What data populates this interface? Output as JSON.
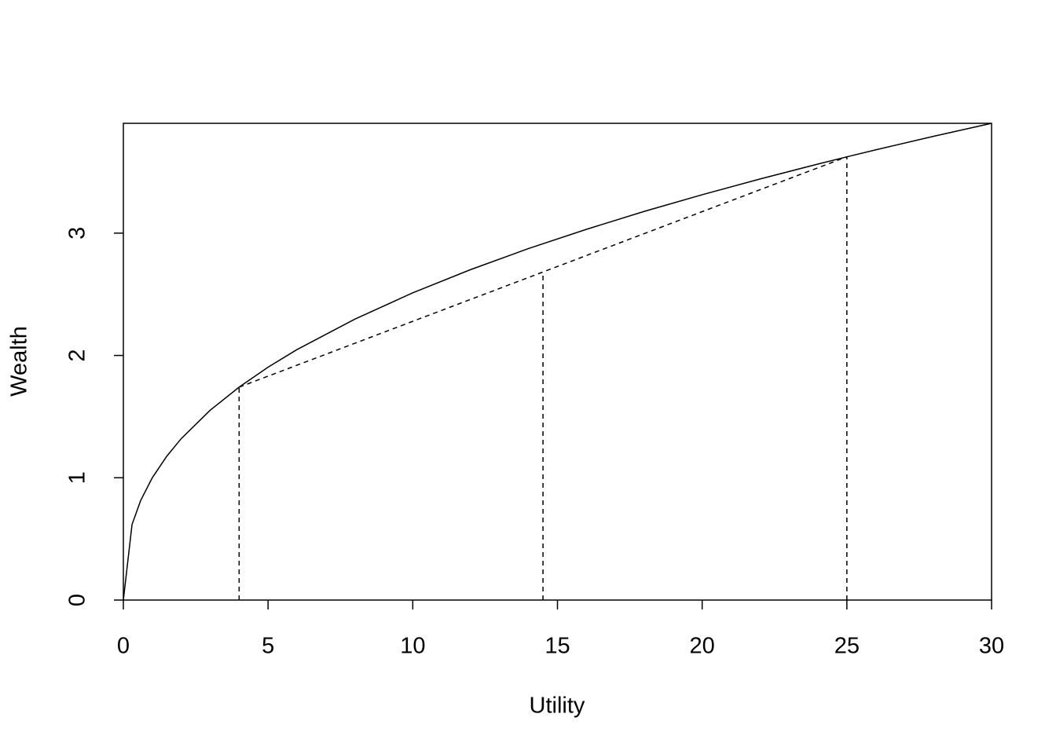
{
  "chart_data": {
    "type": "line",
    "x_label": "Utility",
    "y_label": "Wealth",
    "xlim": [
      0,
      30
    ],
    "ylim": [
      0,
      3.898
    ],
    "xticks": [
      0,
      5,
      10,
      15,
      20,
      25,
      30
    ],
    "yticks": [
      0,
      1,
      2,
      3
    ],
    "series": [
      {
        "color": "#000000",
        "dashed": false,
        "x": [
          0,
          0.3,
          0.6,
          1,
          1.5,
          2,
          3,
          4,
          5,
          6,
          8,
          10,
          12,
          14,
          16,
          18,
          20,
          22,
          24,
          25,
          26,
          28,
          30
        ],
        "values": [
          0,
          0.618,
          0.815,
          1,
          1.176,
          1.32,
          1.552,
          1.741,
          1.904,
          2.048,
          2.297,
          2.512,
          2.702,
          2.874,
          3.031,
          3.178,
          3.314,
          3.443,
          3.565,
          3.624,
          3.681,
          3.792,
          3.898
        ]
      },
      {
        "color": "#000000",
        "dashed": true,
        "x": [
          4,
          25
        ],
        "values": [
          1.741,
          3.624
        ]
      },
      {
        "color": "#000000",
        "dashed": true,
        "x": [
          4,
          4
        ],
        "values": [
          0,
          1.741
        ]
      },
      {
        "color": "#000000",
        "dashed": true,
        "x": [
          14.5,
          14.5
        ],
        "values": [
          0,
          2.683
        ]
      },
      {
        "color": "#000000",
        "dashed": true,
        "x": [
          25,
          25
        ],
        "values": [
          0,
          3.624
        ]
      }
    ]
  }
}
